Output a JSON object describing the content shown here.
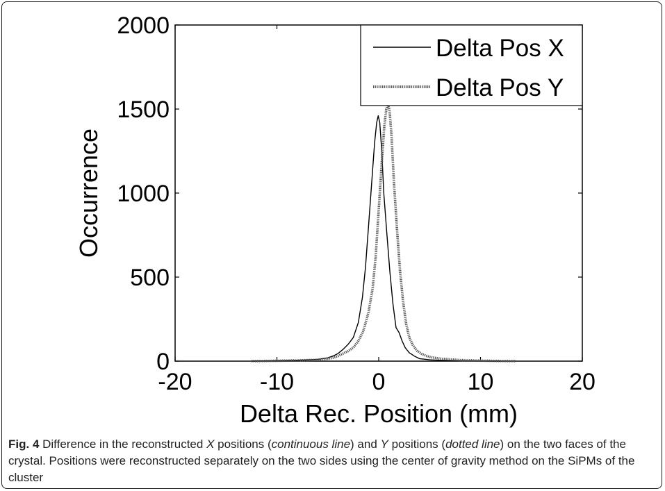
{
  "chart_data": {
    "type": "line",
    "title": "",
    "xlabel": "Delta Rec. Position (mm)",
    "ylabel": "Occurrence",
    "xlim": [
      -20,
      20
    ],
    "ylim": [
      0,
      2000
    ],
    "xticks": [
      -20,
      -10,
      0,
      10,
      20
    ],
    "yticks": [
      0,
      500,
      1000,
      1500,
      2000
    ],
    "grid": false,
    "legend_position": "top-right",
    "series": [
      {
        "name": "Delta Pos X",
        "style": "solid",
        "color": "#000000",
        "x": [
          -12.5,
          -10,
          -8,
          -6,
          -5,
          -4.5,
          -4,
          -3.5,
          -3,
          -2.5,
          -2,
          -1.6,
          -1.3,
          -1.0,
          -0.7,
          -0.4,
          -0.2,
          -0.05,
          0.1,
          0.3,
          0.5,
          0.8,
          1.1,
          1.4,
          1.7,
          2.0,
          2.3,
          2.6,
          3.0,
          3.5,
          4,
          5,
          6,
          8,
          10,
          12
        ],
        "y": [
          0,
          2,
          5,
          10,
          20,
          30,
          45,
          70,
          100,
          140,
          230,
          380,
          560,
          800,
          1050,
          1300,
          1420,
          1460,
          1420,
          1250,
          1000,
          760,
          530,
          340,
          200,
          170,
          120,
          80,
          50,
          30,
          15,
          8,
          5,
          2,
          1,
          0
        ]
      },
      {
        "name": "Delta Pos Y",
        "style": "dotted",
        "color": "#555555",
        "x": [
          -12.5,
          -10,
          -8,
          -6,
          -5,
          -4.5,
          -4,
          -3.5,
          -3,
          -2.5,
          -2,
          -1.5,
          -1.0,
          -0.6,
          -0.3,
          0.0,
          0.3,
          0.55,
          0.75,
          0.9,
          1.05,
          1.25,
          1.5,
          1.8,
          2.1,
          2.4,
          2.7,
          3.0,
          3.4,
          3.8,
          4.3,
          5,
          6,
          8,
          10,
          12,
          13.5
        ],
        "y": [
          0,
          2,
          4,
          8,
          15,
          20,
          30,
          45,
          60,
          80,
          120,
          180,
          290,
          430,
          620,
          900,
          1180,
          1400,
          1500,
          1520,
          1500,
          1350,
          1060,
          780,
          530,
          350,
          220,
          140,
          90,
          60,
          40,
          25,
          15,
          6,
          3,
          1,
          0
        ]
      }
    ]
  },
  "caption": {
    "label": "Fig. 4",
    "seg1": " Difference in the reconstructed ",
    "x_var": "X",
    "seg2": " positions (",
    "cont": "continuous line",
    "seg3": ") and ",
    "y_var": "Y",
    "seg4": " positions (",
    "dot": "dotted line",
    "seg5": ") on the two faces of the crystal. Positions were reconstructed separately on the two sides using the center of gravity method on the SiPMs of the cluster"
  }
}
